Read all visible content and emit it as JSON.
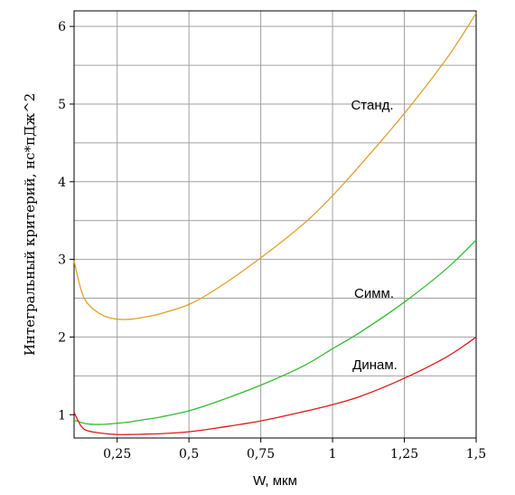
{
  "chart_data": {
    "type": "line",
    "title": "",
    "xlabel": "W, мкм",
    "ylabel": "Интегральный критерий, нс*пДж^2",
    "xlim": [
      0.1,
      1.5
    ],
    "ylim": [
      0.7,
      6.2
    ],
    "grid": true,
    "x_ticks": [
      0.25,
      0.5,
      0.75,
      1,
      1.25,
      1.5
    ],
    "x_tick_labels": [
      "0,25",
      "0,5",
      "0,75",
      "1",
      "1,25",
      "1,5"
    ],
    "y_ticks": [
      1,
      2,
      3,
      4,
      5,
      6
    ],
    "y_tick_labels": [
      "1",
      "2",
      "3",
      "4",
      "5",
      "6"
    ],
    "x": [
      0.1,
      0.125,
      0.15,
      0.2,
      0.25,
      0.3,
      0.35,
      0.4,
      0.5,
      0.6,
      0.75,
      0.9,
      1.0,
      1.1,
      1.25,
      1.4,
      1.5
    ],
    "series": [
      {
        "name": "Станд.",
        "color": "#e0a030",
        "values": [
          2.98,
          2.6,
          2.42,
          2.28,
          2.23,
          2.23,
          2.26,
          2.3,
          2.42,
          2.63,
          3.02,
          3.46,
          3.82,
          4.23,
          4.88,
          5.6,
          6.17
        ]
      },
      {
        "name": "Симм.",
        "color": "#33bb33",
        "values": [
          0.93,
          0.9,
          0.88,
          0.875,
          0.89,
          0.91,
          0.94,
          0.97,
          1.05,
          1.17,
          1.38,
          1.63,
          1.85,
          2.07,
          2.45,
          2.89,
          3.25
        ]
      },
      {
        "name": "Динам.",
        "color": "#e01818",
        "values": [
          1.03,
          0.85,
          0.79,
          0.76,
          0.745,
          0.745,
          0.75,
          0.755,
          0.78,
          0.83,
          0.92,
          1.04,
          1.13,
          1.24,
          1.47,
          1.75,
          2.0
        ]
      }
    ]
  }
}
